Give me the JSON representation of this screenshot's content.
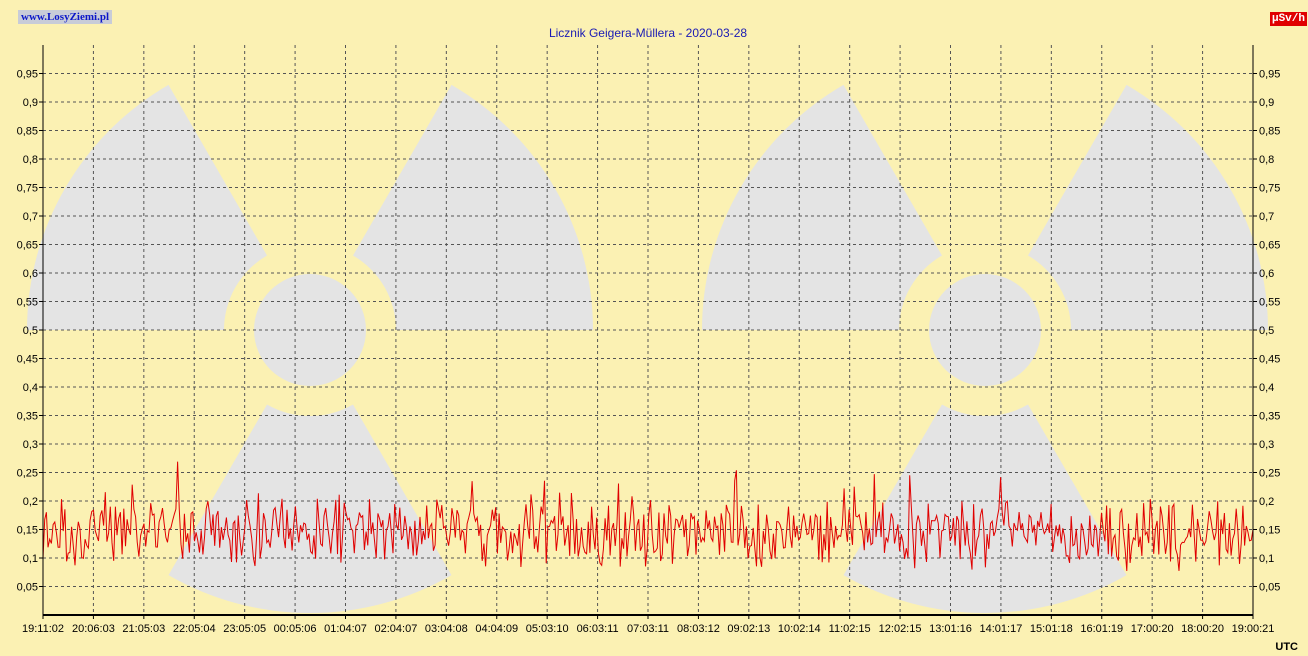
{
  "header": {
    "site_link": "www.LosyZiemi.pl",
    "unit_badge": "µSv/h",
    "x_unit": "UTC"
  },
  "colors": {
    "background": "#fbf1b3",
    "trefoil": "#e4e4e4",
    "series": "#e00000",
    "grid": "#555555"
  },
  "chart_data": {
    "type": "line",
    "title": "Licznik Geigera-Müllera - 2020-03-28",
    "xlabel": "",
    "ylabel": "",
    "ylim": [
      0,
      1.0
    ],
    "y_ticks": [
      "0,05",
      "0,1",
      "0,15",
      "0,2",
      "0,25",
      "0,3",
      "0,35",
      "0,4",
      "0,45",
      "0,5",
      "0,55",
      "0,6",
      "0,65",
      "0,7",
      "0,75",
      "0,8",
      "0,85",
      "0,9",
      "0,95"
    ],
    "x_ticks": [
      "19:11:02",
      "20:06:03",
      "21:05:03",
      "22:05:04",
      "23:05:05",
      "00:05:06",
      "01:04:07",
      "02:04:07",
      "03:04:08",
      "04:04:09",
      "05:03:10",
      "06:03:11",
      "07:03:11",
      "08:03:12",
      "09:02:13",
      "10:02:14",
      "11:02:15",
      "12:02:15",
      "13:01:16",
      "14:01:17",
      "15:01:18",
      "16:01:19",
      "17:00:20",
      "18:00:20",
      "19:00:21"
    ],
    "grid": true,
    "series": [
      {
        "approx_mean": 0.145,
        "min": 0.04,
        "max": 0.27
      }
    ]
  }
}
